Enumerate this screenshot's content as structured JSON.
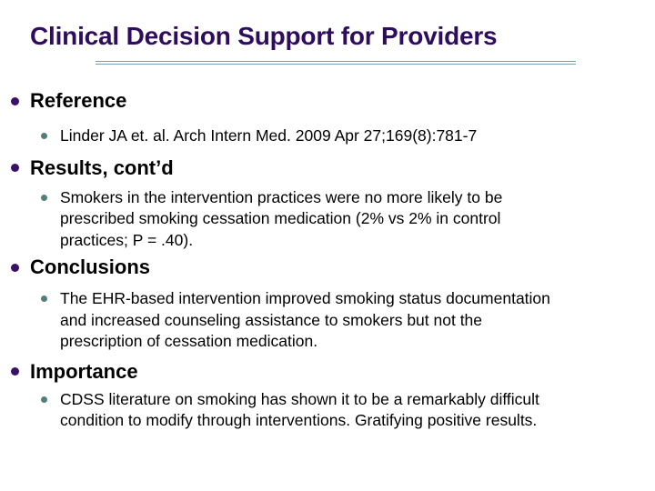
{
  "slide": {
    "title": "Clinical Decision Support for Providers",
    "colors": {
      "title_text": "#2e0d5e",
      "heading_text": "#000000",
      "body_text": "#000000",
      "level1_bullet": "#3a1166",
      "level2_bullet": "#527e7c",
      "title_rule": "#7f9aab",
      "background": "#ffffff"
    },
    "sections": [
      {
        "heading": "Reference",
        "lines": [
          "Linder JA et. al. Arch Intern Med. 2009 Apr 27;169(8):781-7"
        ]
      },
      {
        "heading": "Results, cont’d",
        "lines": [
          "Smokers in the intervention practices were no more likely to be",
          "prescribed smoking cessation medication (2% vs 2% in control",
          "practices; P = .40)."
        ]
      },
      {
        "heading": "Conclusions",
        "lines": [
          "The EHR-based intervention improved smoking status documentation",
          "and increased counseling assistance to smokers but not the",
          "prescription of cessation medication."
        ]
      },
      {
        "heading": "Importance",
        "lines": [
          "CDSS literature on smoking has shown it to be a remarkably difficult",
          "condition to modify through interventions. Gratifying positive results."
        ]
      }
    ]
  }
}
